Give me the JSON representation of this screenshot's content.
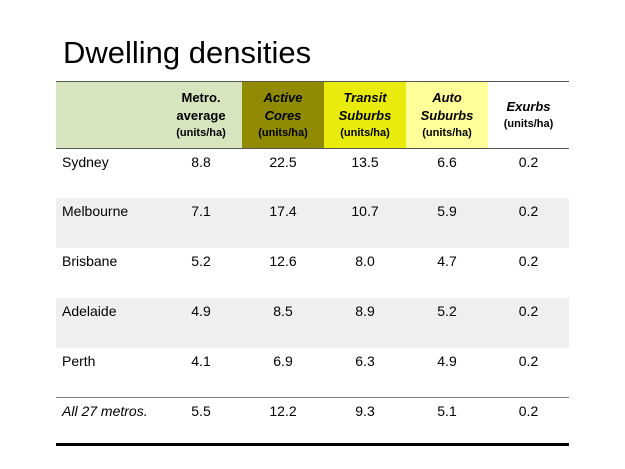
{
  "title": "Dwelling densities",
  "header": {
    "columns": [
      {
        "name_lines": [
          "Metro.",
          "average"
        ],
        "unit": "(units/ha)"
      },
      {
        "name_lines": [
          "Active",
          "Cores"
        ],
        "unit": "(units/ha)"
      },
      {
        "name_lines": [
          "Transit",
          "Suburbs"
        ],
        "unit": "(units/ha)"
      },
      {
        "name_lines": [
          "Auto",
          "Suburbs"
        ],
        "unit": "(units/ha)"
      },
      {
        "name_lines": [
          "Exurbs"
        ],
        "unit": "(units/ha)"
      }
    ]
  },
  "colors": {
    "metro": "#d7e4bd",
    "active_cores": "#8f8a00",
    "transit_suburbs": "#e8eb0b",
    "auto_suburbs": "#ffff9a"
  },
  "rows": [
    {
      "label": "Sydney",
      "values": [
        "8.8",
        "22.5",
        "13.5",
        "6.6",
        "0.2"
      ]
    },
    {
      "label": "Melbourne",
      "values": [
        "7.1",
        "17.4",
        "10.7",
        "5.9",
        "0.2"
      ]
    },
    {
      "label": "Brisbane",
      "values": [
        "5.2",
        "12.6",
        "8.0",
        "4.7",
        "0.2"
      ]
    },
    {
      "label": "Adelaide",
      "values": [
        "4.9",
        "8.5",
        "8.9",
        "5.2",
        "0.2"
      ]
    },
    {
      "label": "Perth",
      "values": [
        "4.1",
        "6.9",
        "6.3",
        "4.9",
        "0.2"
      ]
    },
    {
      "label": "All 27 metros.",
      "values": [
        "5.5",
        "12.2",
        "9.3",
        "5.1",
        "0.2"
      ]
    }
  ]
}
